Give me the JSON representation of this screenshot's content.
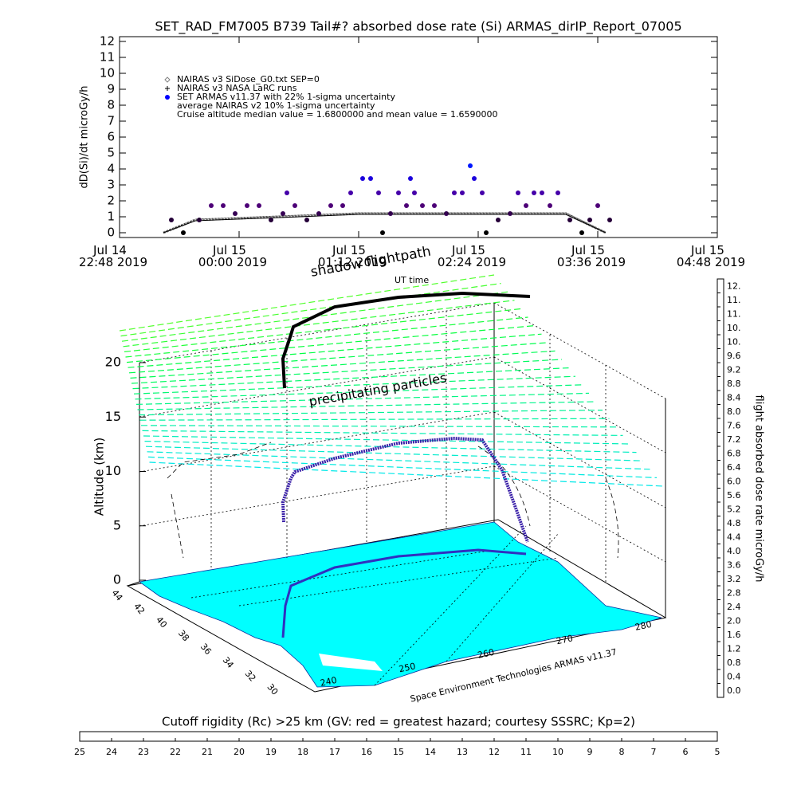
{
  "chart_data": [
    {
      "type": "line",
      "title": "SET_RAD_FM7005  B739 Tail#? absorbed dose rate (Si) ARMAS_dirIP_Report_07005",
      "ylabel": "dD(Si)/dt microGy/h",
      "ylim": [
        -0.3,
        12.3
      ],
      "yticks": [
        0,
        1,
        2,
        3,
        4,
        5,
        6,
        7,
        8,
        9,
        10,
        11,
        12
      ],
      "xlim": [
        0,
        360
      ],
      "xticks": [
        {
          "value": 0,
          "label": "Jul 14 22:48 2019"
        },
        {
          "value": 72,
          "label": "Jul 15 00:00 2019"
        },
        {
          "value": 144,
          "label": "Jul 15 01:12 2019"
        },
        {
          "value": 216,
          "label": "Jul 15 02:24 2019"
        },
        {
          "value": 288,
          "label": "Jul 15 03:36 2019"
        },
        {
          "value": 360,
          "label": "Jul 15 04:48 2019"
        }
      ],
      "annotation": "Cruise altitude median value = 1.6800000 and mean value = 1.6590000",
      "series": [
        {
          "name": "NAIRAS v3 SiDose_G0.txt SEP=0",
          "color": "#808080",
          "marker": "diamond",
          "x": [
            26.4,
            45.6,
            96,
            144,
            200,
            268.8,
            292.8
          ],
          "values": [
            0,
            0.8,
            1.0,
            1.2,
            1.2,
            1.2,
            0
          ]
        },
        {
          "name": "NAIRAS v3 NASA LaRC runs",
          "color": "#000000",
          "marker": "plus",
          "x": [
            26.4,
            45.6,
            96,
            144,
            200,
            268.8,
            292.8
          ],
          "values": [
            0,
            0.75,
            0.95,
            1.15,
            1.15,
            1.15,
            0
          ]
        },
        {
          "name": "SET ARMAS v11.37 with 22% 1-sigma uncertainty",
          "color": "#0000ff",
          "marker": "circle",
          "x": [
            31.2,
            38.4,
            48,
            55.2,
            62.4,
            69.6,
            76.8,
            84,
            91.2,
            98.4,
            100.8,
            105.6,
            112.8,
            120,
            127.2,
            134.4,
            139.2,
            146.4,
            151.2,
            156,
            158.4,
            163.2,
            168,
            172.8,
            175.2,
            177.6,
            182.4,
            189.6,
            196.8,
            201.6,
            206.4,
            211.2,
            213.6,
            218.4,
            220.8,
            228,
            235.2,
            240,
            244.8,
            249.6,
            254.4,
            259.2,
            264,
            271.2,
            278.4,
            283.2,
            288,
            295.2
          ],
          "values": [
            0.8,
            0,
            0.8,
            1.7,
            1.7,
            1.2,
            1.7,
            1.7,
            0.8,
            1.2,
            2.5,
            1.7,
            0.8,
            1.2,
            1.7,
            1.7,
            2.5,
            3.4,
            3.4,
            2.5,
            0,
            1.2,
            2.5,
            1.7,
            3.4,
            2.5,
            1.7,
            1.7,
            1.2,
            2.5,
            2.5,
            4.2,
            3.4,
            2.5,
            0,
            0.8,
            1.2,
            2.5,
            1.7,
            2.5,
            2.5,
            1.7,
            2.5,
            0.8,
            0,
            0.8,
            1.7,
            0.8
          ]
        },
        {
          "name": "average NAIRAS v2 10% 1-sigma uncertainty",
          "color": "#000000",
          "marker": "dots",
          "x": [
            26.4,
            45.6,
            96,
            144,
            200,
            268.8,
            292.8
          ],
          "values": [
            0,
            0.85,
            1.05,
            1.25,
            1.25,
            1.25,
            0
          ]
        }
      ]
    },
    {
      "type": "3d",
      "zlabel": "Altitude (km)",
      "zlim": [
        0,
        20
      ],
      "zticks": [
        0,
        5,
        10,
        15,
        20
      ],
      "lat_ticks": [
        44,
        42,
        40,
        38,
        36,
        34,
        32,
        30
      ],
      "lon_ticks": [
        240,
        250,
        260,
        270,
        280
      ],
      "annotations": [
        "shadow flightpath",
        "UT time",
        "precipitating particles"
      ],
      "credit": "Space Environment Technologies ARMAS v11.37",
      "colormap": [
        "#000000",
        "#5a008c",
        "#0000ff",
        "#00e5ff",
        "#00ff40",
        "#ffff00",
        "#ff0000"
      ],
      "colorbars": [
        {
          "label": "flight absorbed dose rate microGy/h",
          "lim": [
            0,
            12
          ],
          "ticks": [
            {
              "value": 0,
              "label": "0.0"
            },
            {
              "value": 0.4,
              "label": "0.4"
            },
            {
              "value": 0.8,
              "label": "0.8"
            },
            {
              "value": 1.2,
              "label": "1.2"
            },
            {
              "value": 1.6,
              "label": "1.6"
            },
            {
              "value": 2.0,
              "label": "2.0"
            },
            {
              "value": 2.4,
              "label": "2.4"
            },
            {
              "value": 2.8,
              "label": "2.8"
            },
            {
              "value": 3.2,
              "label": "3.2"
            },
            {
              "value": 3.6,
              "label": "3.6"
            },
            {
              "value": 4.0,
              "label": "4.0"
            },
            {
              "value": 4.4,
              "label": "4.4"
            },
            {
              "value": 4.8,
              "label": "4.8"
            },
            {
              "value": 5.2,
              "label": "5.2"
            },
            {
              "value": 5.6,
              "label": "5.6"
            },
            {
              "value": 6.0,
              "label": "6.0"
            },
            {
              "value": 6.4,
              "label": "6.4"
            },
            {
              "value": 6.8,
              "label": "6.8"
            },
            {
              "value": 7.2,
              "label": "7.2"
            },
            {
              "value": 7.6,
              "label": "7.6"
            },
            {
              "value": 8.0,
              "label": "8.0"
            },
            {
              "value": 8.4,
              "label": "8.4"
            },
            {
              "value": 8.8,
              "label": "8.8"
            },
            {
              "value": 9.2,
              "label": "9.2"
            },
            {
              "value": 9.6,
              "label": "9.6"
            },
            {
              "value": 10.0,
              "label": "10."
            },
            {
              "value": 10.4,
              "label": "10."
            },
            {
              "value": 10.8,
              "label": "11."
            },
            {
              "value": 11.2,
              "label": "11."
            },
            {
              "value": 11.6,
              "label": "12."
            }
          ]
        },
        {
          "label": "Cutoff rigidity (Rc) >25 km (GV: red = greatest hazard; courtesy SSSRC; Kp=2)",
          "lim": [
            25,
            5
          ],
          "ticks": [
            25,
            24,
            23,
            22,
            21,
            20,
            19,
            18,
            17,
            16,
            15,
            14,
            13,
            12,
            11,
            10,
            9,
            8,
            7,
            6,
            5
          ]
        }
      ]
    }
  ]
}
